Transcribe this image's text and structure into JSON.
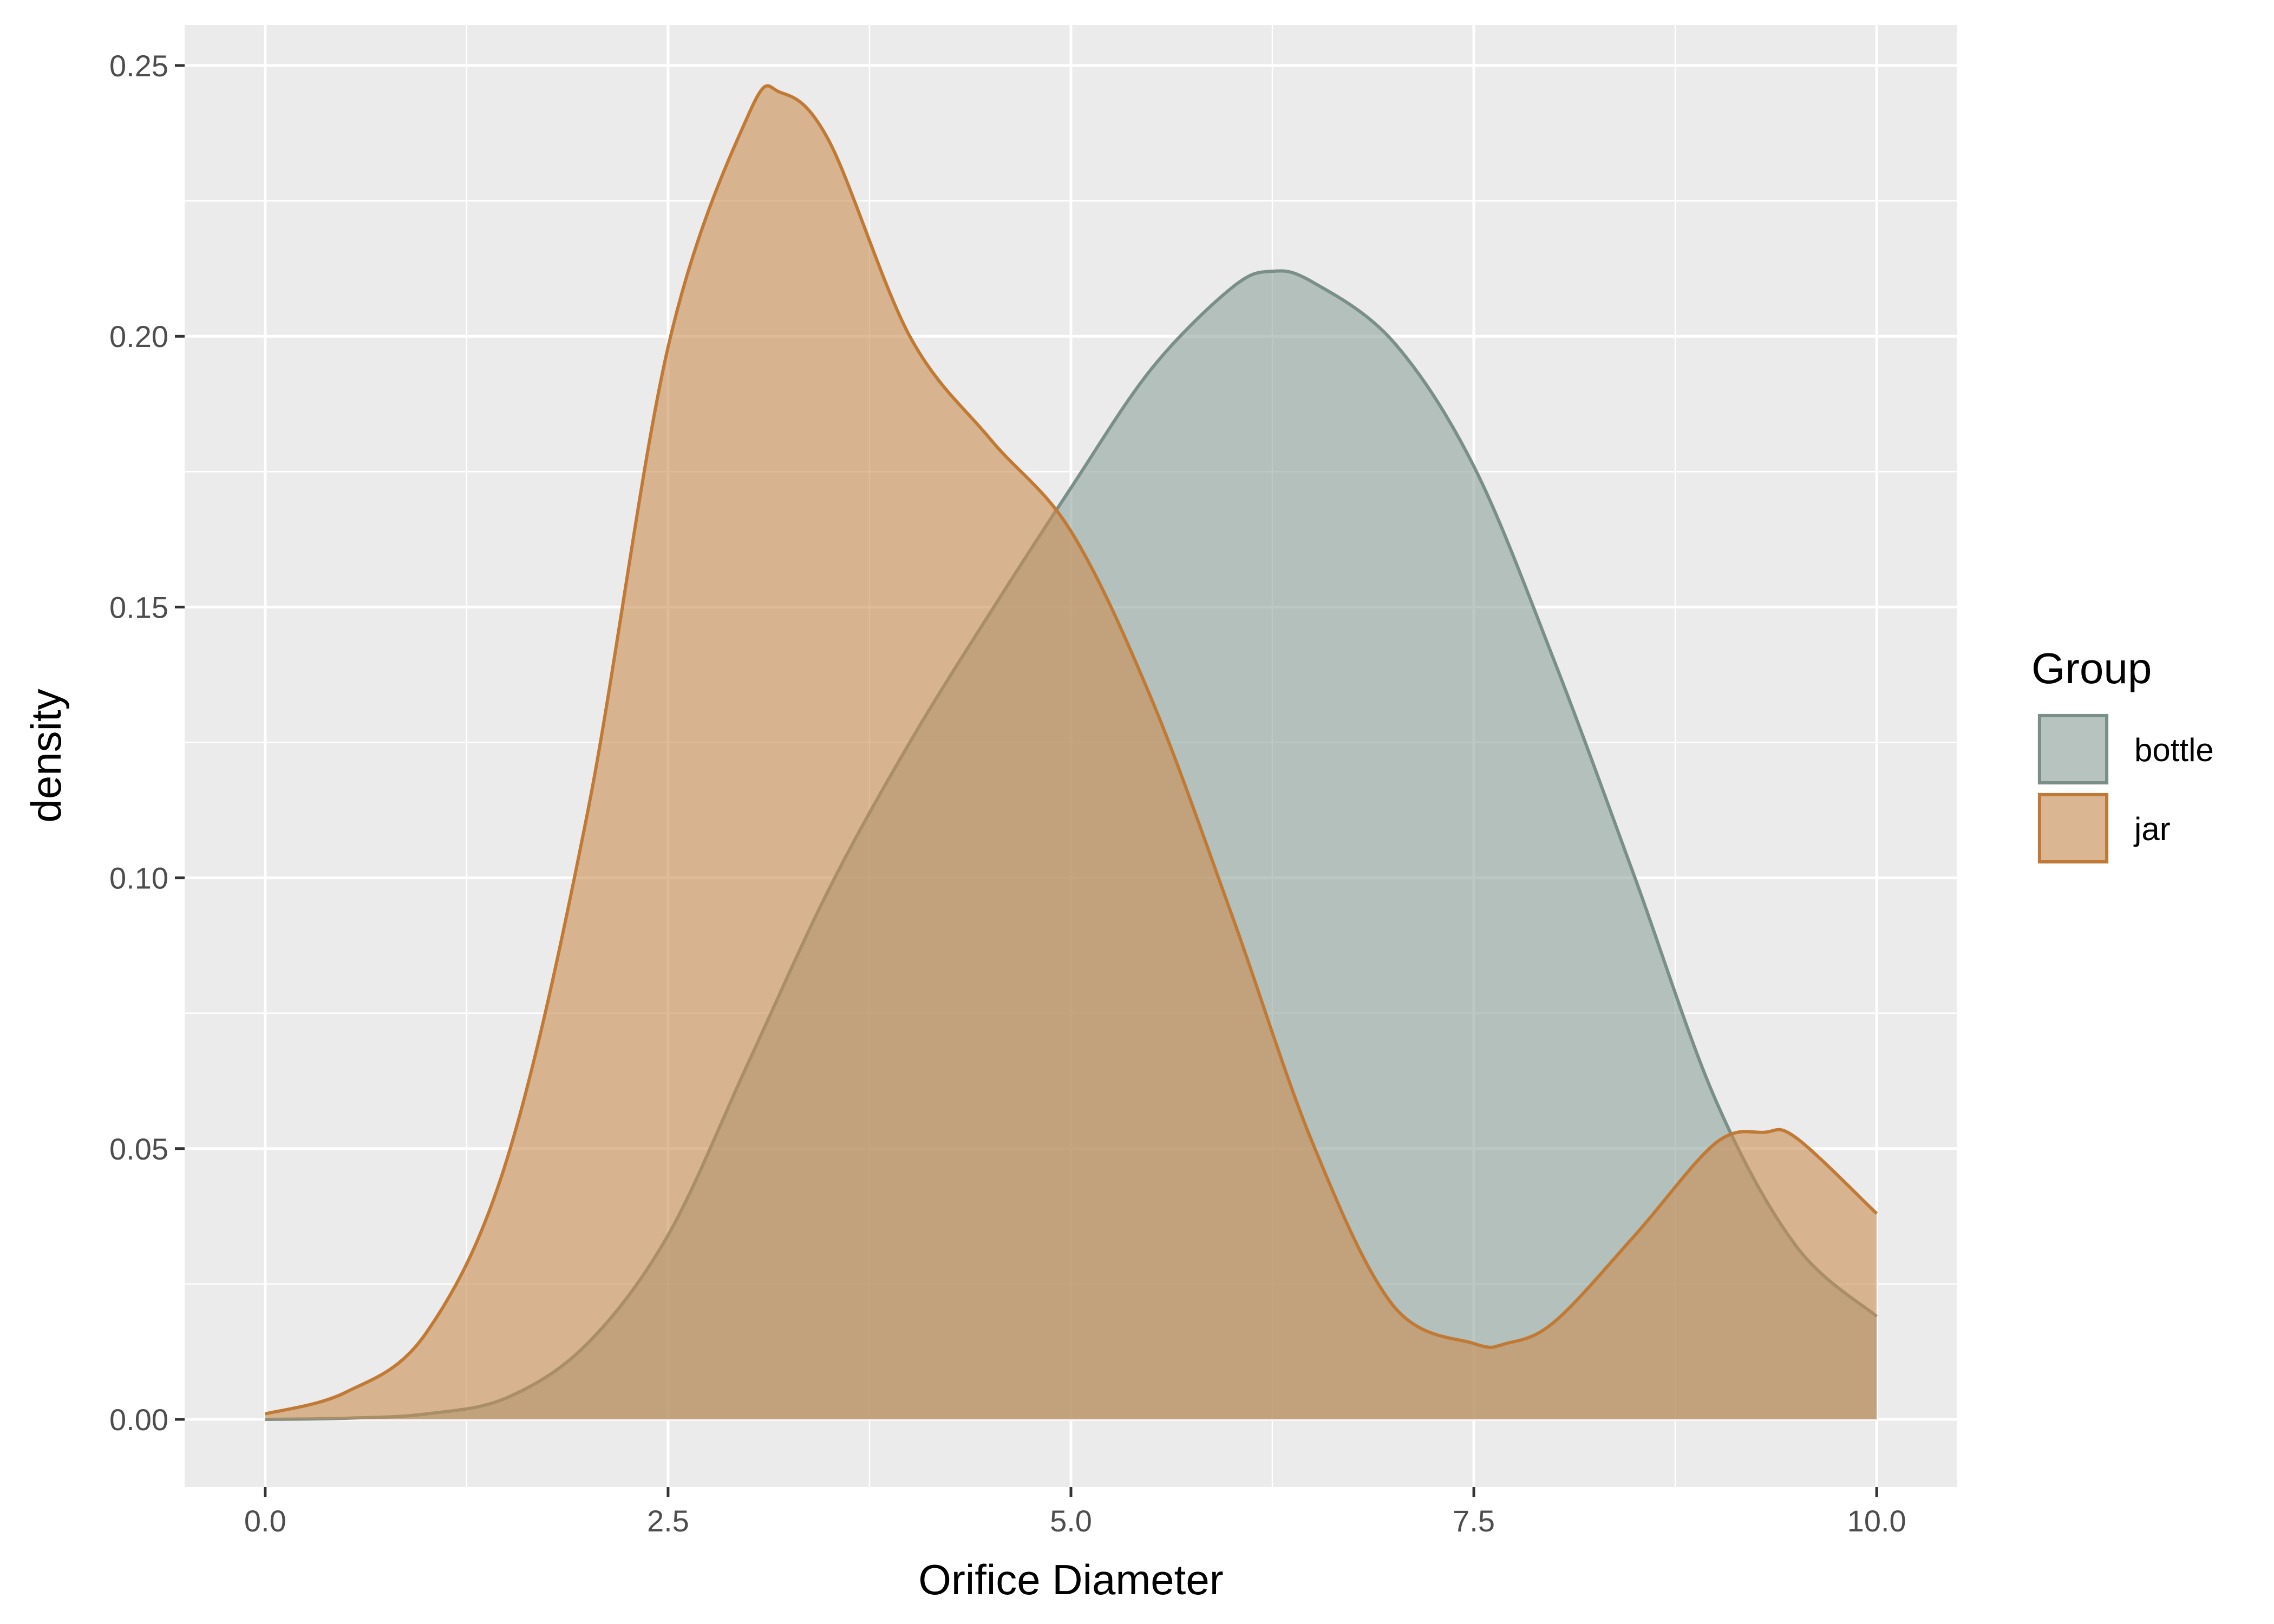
{
  "chart_data": {
    "type": "area",
    "subtype": "density",
    "title": "",
    "xlabel": "Orifice Diameter",
    "ylabel": "density",
    "xlim": [
      -0.5,
      10.5
    ],
    "ylim": [
      -0.0125,
      0.2575
    ],
    "x_ticks": [
      0.0,
      2.5,
      5.0,
      7.5,
      10.0
    ],
    "x_tick_labels": [
      "0.0",
      "2.5",
      "5.0",
      "7.5",
      "10.0"
    ],
    "y_ticks": [
      0.0,
      0.05,
      0.1,
      0.15,
      0.2,
      0.25
    ],
    "y_tick_labels": [
      "0.00",
      "0.05",
      "0.10",
      "0.15",
      "0.20",
      "0.25"
    ],
    "grid": true,
    "panel_background": "#ebebeb",
    "grid_color": "#ffffff",
    "legend": {
      "title": "Group",
      "position": "right",
      "entries": [
        "bottle",
        "jar"
      ]
    },
    "series": [
      {
        "name": "bottle",
        "fill": "#8fa39c",
        "stroke": "#7a8f88",
        "x": [
          0.0,
          0.5,
          1.0,
          1.5,
          2.0,
          2.5,
          3.0,
          3.5,
          4.0,
          4.5,
          5.0,
          5.5,
          6.0,
          6.25,
          6.5,
          7.0,
          7.5,
          8.0,
          8.5,
          9.0,
          9.5,
          10.0
        ],
        "y": [
          0.0,
          0.0002,
          0.001,
          0.004,
          0.014,
          0.034,
          0.066,
          0.098,
          0.125,
          0.149,
          0.172,
          0.194,
          0.209,
          0.212,
          0.21,
          0.199,
          0.176,
          0.14,
          0.1,
          0.059,
          0.032,
          0.019
        ]
      },
      {
        "name": "jar",
        "fill": "#c98d53",
        "stroke": "#c07a36",
        "x": [
          0.0,
          0.5,
          1.0,
          1.5,
          2.0,
          2.5,
          3.0,
          3.2,
          3.5,
          4.0,
          4.5,
          5.0,
          5.5,
          6.0,
          6.5,
          7.0,
          7.5,
          7.7,
          8.0,
          8.5,
          9.0,
          9.3,
          9.5,
          10.0
        ],
        "y": [
          0.001,
          0.005,
          0.016,
          0.048,
          0.112,
          0.198,
          0.241,
          0.245,
          0.236,
          0.2,
          0.181,
          0.164,
          0.133,
          0.093,
          0.051,
          0.021,
          0.014,
          0.014,
          0.018,
          0.034,
          0.051,
          0.053,
          0.052,
          0.038
        ]
      }
    ]
  }
}
